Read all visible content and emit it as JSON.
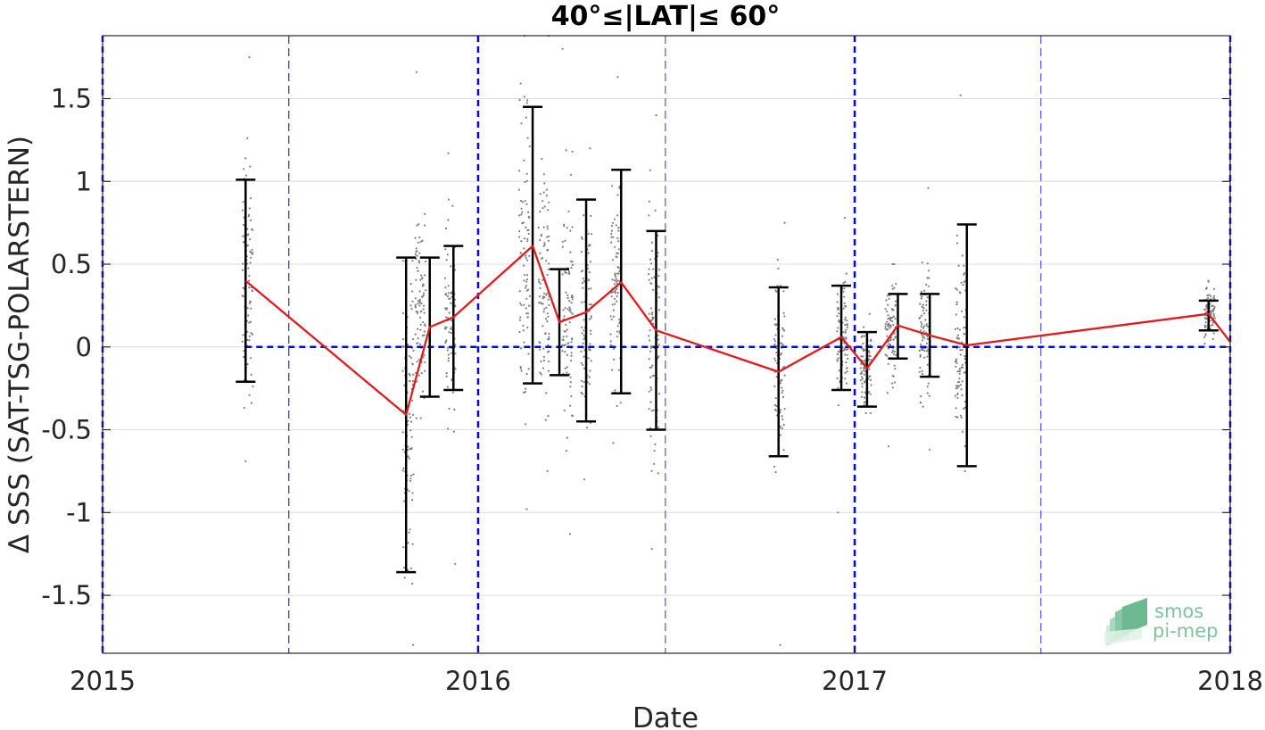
{
  "chart_data": {
    "type": "scatter",
    "title": "40°≤|LAT|≤ 60°",
    "xlabel": "Date",
    "ylabel": "Δ SSS (SAT-TSG-POLARSTERN)",
    "xlim": [
      "2015-01-01",
      "2018-01-01"
    ],
    "ylim": [
      -1.85,
      1.88
    ],
    "x_ticks": [
      "2015",
      "2016",
      "2017",
      "2018"
    ],
    "y_ticks": [
      1.5,
      1,
      0.5,
      0,
      -0.5,
      -1,
      -1.5
    ],
    "y_tick_labels": [
      "1.5",
      "1",
      "0.5",
      "0",
      "-0.5",
      "-1",
      "-1.5"
    ],
    "grid": "horizontal",
    "reference_line": {
      "y": 0,
      "color": "#0000ff",
      "style": "dashed"
    },
    "year_boundaries": [
      "2015-01-01",
      "2016-01-01",
      "2017-01-01",
      "2018-01-01"
    ],
    "mid_year_lines": [
      "2015-07-01",
      "2016-07-01",
      "2017-07-01"
    ],
    "colors": {
      "mean_line": "#e41a1c",
      "error_bars": "#000000",
      "points": "#7f7f7f",
      "reference": "#0000ff"
    },
    "series": [
      {
        "style": "red-line-with-black-errorbars",
        "points": [
          {
            "date": "2015-05-20",
            "mean": 0.4,
            "low": -0.21,
            "high": 1.01
          },
          {
            "date": "2015-10-23",
            "mean": -0.41,
            "low": -1.36,
            "high": 0.54
          },
          {
            "date": "2015-11-15",
            "mean": 0.12,
            "low": -0.3,
            "high": 0.54
          },
          {
            "date": "2015-12-08",
            "mean": 0.18,
            "low": -0.26,
            "high": 0.61
          },
          {
            "date": "2016-02-23",
            "mean": 0.61,
            "low": -0.22,
            "high": 1.45
          },
          {
            "date": "2016-03-20",
            "mean": 0.15,
            "low": -0.17,
            "high": 0.47
          },
          {
            "date": "2016-04-15",
            "mean": 0.21,
            "low": -0.45,
            "high": 0.89
          },
          {
            "date": "2016-05-19",
            "mean": 0.39,
            "low": -0.28,
            "high": 1.07
          },
          {
            "date": "2016-06-22",
            "mean": 0.1,
            "low": -0.5,
            "high": 0.7
          },
          {
            "date": "2016-10-19",
            "mean": -0.15,
            "low": -0.66,
            "high": 0.36
          },
          {
            "date": "2016-12-19",
            "mean": 0.06,
            "low": -0.26,
            "high": 0.37
          },
          {
            "date": "2017-01-13",
            "mean": -0.13,
            "low": -0.36,
            "high": 0.09
          },
          {
            "date": "2017-02-12",
            "mean": 0.13,
            "low": -0.07,
            "high": 0.32
          },
          {
            "date": "2017-03-15",
            "mean": 0.07,
            "low": -0.18,
            "high": 0.32
          },
          {
            "date": "2017-04-20",
            "mean": 0.01,
            "low": -0.72,
            "high": 0.74
          },
          {
            "date": "2017-12-11",
            "mean": 0.2,
            "low": 0.1,
            "high": 0.28
          },
          {
            "date": "2018-01-01",
            "mean": 0.03
          }
        ]
      }
    ],
    "scatter_clusters": [
      {
        "date": "2015-05-22",
        "min": -0.69,
        "max": 1.75,
        "mean": 0.4,
        "sd": 0.35
      },
      {
        "date": "2015-10-25",
        "min": -1.8,
        "max": 0.52,
        "mean": -0.41,
        "sd": 0.45
      },
      {
        "date": "2015-11-06",
        "min": -0.43,
        "max": 1.66,
        "mean": 0.25,
        "sd": 0.25
      },
      {
        "date": "2015-12-05",
        "min": -1.31,
        "max": 1.17,
        "mean": 0.18,
        "sd": 0.28
      },
      {
        "date": "2016-02-15",
        "min": -0.98,
        "max": 1.88,
        "mean": 0.55,
        "sd": 0.45
      },
      {
        "date": "2016-03-05",
        "min": -0.75,
        "max": 1.88,
        "mean": 0.3,
        "sd": 0.35
      },
      {
        "date": "2016-03-28",
        "min": -1.13,
        "max": 1.8,
        "mean": 0.2,
        "sd": 0.4
      },
      {
        "date": "2016-04-15",
        "min": -0.8,
        "max": 1.2,
        "mean": 0.2,
        "sd": 0.3
      },
      {
        "date": "2016-05-14",
        "min": -0.58,
        "max": 1.63,
        "mean": 0.4,
        "sd": 0.3
      },
      {
        "date": "2016-06-20",
        "min": -1.22,
        "max": 1.4,
        "mean": 0.1,
        "sd": 0.35
      },
      {
        "date": "2016-10-20",
        "min": -1.8,
        "max": 0.75,
        "mean": -0.15,
        "sd": 0.3
      },
      {
        "date": "2016-12-20",
        "min": -1.0,
        "max": 0.78,
        "mean": 0.06,
        "sd": 0.2
      },
      {
        "date": "2017-01-12",
        "min": -0.4,
        "max": 0.2,
        "mean": -0.1,
        "sd": 0.12
      },
      {
        "date": "2017-02-05",
        "min": -0.6,
        "max": 0.5,
        "mean": 0.1,
        "sd": 0.15
      },
      {
        "date": "2017-03-10",
        "min": -0.62,
        "max": 0.96,
        "mean": 0.1,
        "sd": 0.2
      },
      {
        "date": "2017-04-14",
        "min": -0.75,
        "max": 1.52,
        "mean": 0.05,
        "sd": 0.3
      },
      {
        "date": "2017-12-12",
        "min": 0.02,
        "max": 0.4,
        "mean": 0.2,
        "sd": 0.08
      }
    ]
  },
  "logo": {
    "line1": "smos",
    "line2": "pi-mep"
  }
}
